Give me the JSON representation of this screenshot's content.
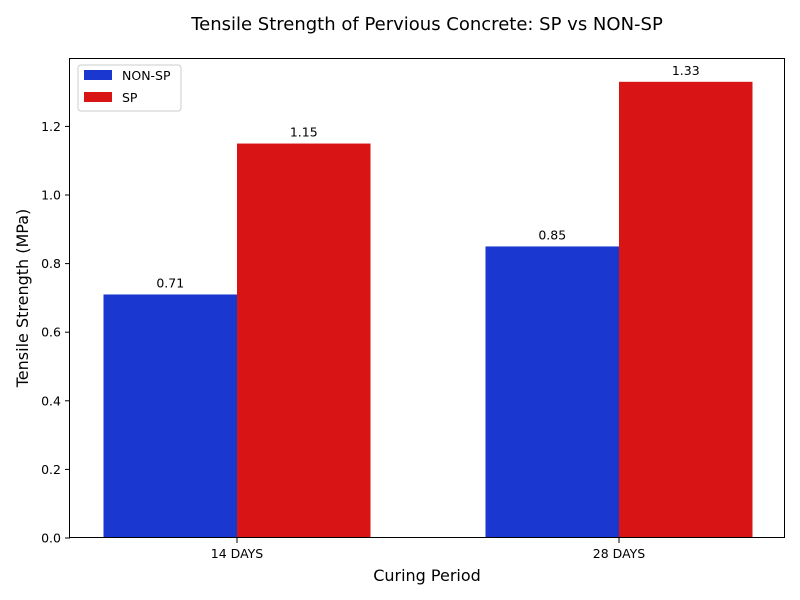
{
  "chart_data": {
    "type": "bar",
    "title": "Tensile Strength of Pervious Concrete: SP vs NON-SP",
    "xlabel": "Curing Period",
    "ylabel": "Tensile Strength (MPa)",
    "categories": [
      "14 DAYS",
      "28 DAYS"
    ],
    "series": [
      {
        "name": "NON-SP",
        "values": [
          0.71,
          0.85
        ],
        "labels": [
          "0.71",
          "0.85"
        ],
        "color": "#1a37cf"
      },
      {
        "name": "SP",
        "values": [
          1.15,
          1.33
        ],
        "labels": [
          "1.15",
          "1.33"
        ],
        "color": "#d91414"
      }
    ],
    "ylim": [
      0,
      1.3965
    ],
    "yticks": [
      0.0,
      0.2,
      0.4,
      0.6,
      0.8,
      1.0,
      1.2
    ],
    "ytick_labels": [
      "0.0",
      "0.2",
      "0.4",
      "0.6",
      "0.8",
      "1.0",
      "1.2"
    ],
    "grid": false,
    "legend_position": "top-left"
  }
}
